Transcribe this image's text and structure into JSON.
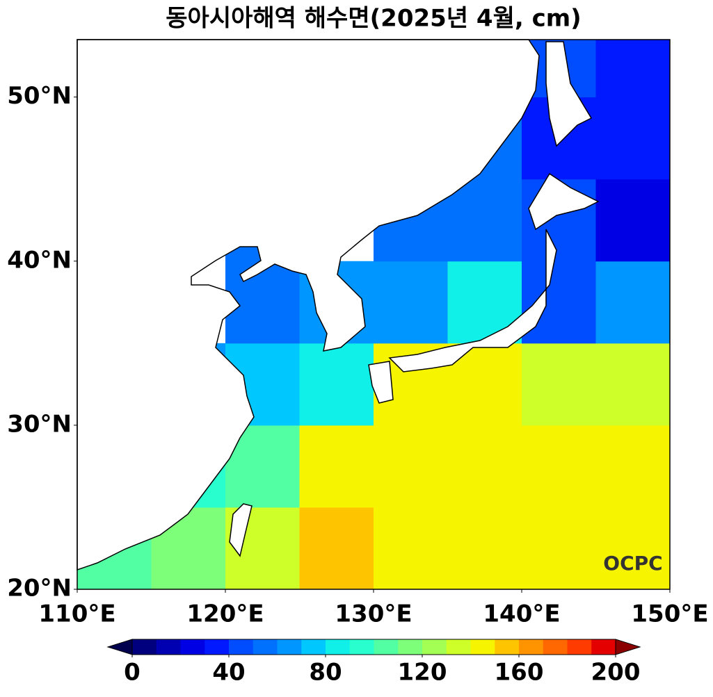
{
  "chart_data": {
    "type": "map",
    "title": "동아시아해역 해수면(2025년 4월, cm)",
    "xlim": [
      110,
      150
    ],
    "ylim": [
      20,
      53.5
    ],
    "xticks": [
      {
        "value": 110,
        "label": "110°E"
      },
      {
        "value": 120,
        "label": "120°E"
      },
      {
        "value": 130,
        "label": "130°E"
      },
      {
        "value": 140,
        "label": "140°E"
      },
      {
        "value": 150,
        "label": "150°E"
      }
    ],
    "yticks": [
      {
        "value": 20,
        "label": "20°N"
      },
      {
        "value": 30,
        "label": "30°N"
      },
      {
        "value": 40,
        "label": "40°N"
      },
      {
        "value": 50,
        "label": "50°N"
      }
    ],
    "field": {
      "lon_edges": [
        110,
        115,
        120,
        125,
        130,
        135,
        140,
        145,
        150
      ],
      "lat_edges": [
        20,
        25,
        30,
        35,
        40,
        45,
        50,
        53.5
      ],
      "values": [
        [
          105,
          110,
          130,
          150,
          145,
          145,
          140,
          140
        ],
        [
          null,
          95,
          105,
          140,
          145,
          140,
          140,
          140
        ],
        [
          null,
          65,
          70,
          85,
          140,
          140,
          130,
          135
        ],
        [
          null,
          null,
          55,
          60,
          60,
          80,
          40,
          60
        ],
        [
          null,
          null,
          55,
          null,
          50,
          50,
          40,
          25
        ],
        [
          null,
          null,
          null,
          null,
          null,
          50,
          35,
          30
        ],
        [
          null,
          null,
          null,
          null,
          null,
          45,
          40,
          30
        ]
      ]
    },
    "clim": [
      0,
      200
    ],
    "colorbar_ticks": [
      0,
      40,
      80,
      120,
      160,
      200
    ],
    "colormap": [
      "#00007f",
      "#0000b2",
      "#0000e5",
      "#0019ff",
      "#004cff",
      "#0070ff",
      "#0096ff",
      "#00c8ff",
      "#10f0e8",
      "#29ffce",
      "#53ffa3",
      "#7dff7a",
      "#a3ff53",
      "#ceff29",
      "#f7f400",
      "#ffc400",
      "#ff9400",
      "#ff6800",
      "#ff3b00",
      "#e50000"
    ],
    "logo": "OCPC"
  }
}
